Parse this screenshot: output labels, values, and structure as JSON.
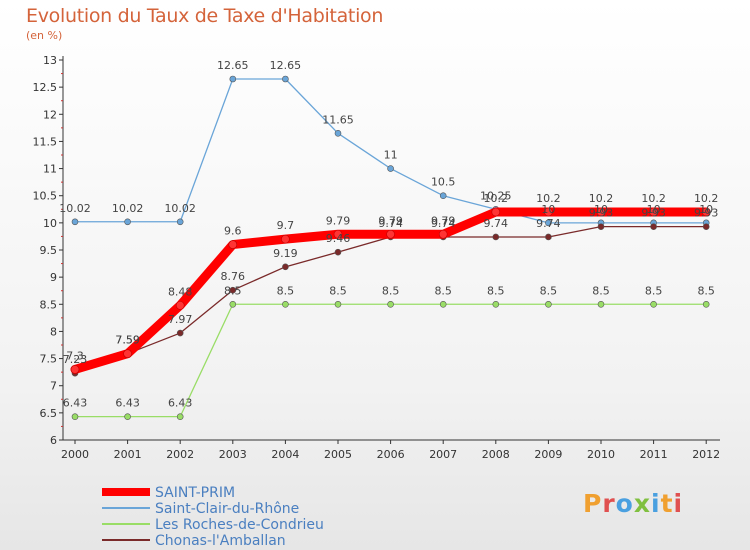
{
  "chart_data": {
    "type": "line",
    "title": "Evolution du Taux de Taxe d'Habitation",
    "subtitle": "(en %)",
    "x": [
      "2000",
      "2001",
      "2002",
      "2003",
      "2004",
      "2005",
      "2006",
      "2007",
      "2008",
      "2009",
      "2010",
      "2011",
      "2012"
    ],
    "ylim": [
      6,
      13
    ],
    "yticks": [
      "6",
      "6.5",
      "7",
      "7.5",
      "8",
      "8.5",
      "9",
      "9.5",
      "10",
      "10.5",
      "11",
      "11.5",
      "12",
      "12.5",
      "13"
    ],
    "grid": false,
    "legend_position": "bottom-left",
    "series": [
      {
        "name": "SAINT-PRIM",
        "color": "#ff0000",
        "values": [
          7.3,
          7.59,
          8.48,
          9.6,
          9.7,
          9.79,
          9.79,
          9.79,
          10.2,
          10.2,
          10.2,
          10.2,
          10.2
        ],
        "labels": [
          "7.3",
          "7.59",
          "8.48",
          "9.6",
          "9.7",
          "9.79",
          "9.79",
          "9.79",
          "10.2",
          "10.2",
          "10.2",
          "10.2",
          "10.2"
        ]
      },
      {
        "name": "Saint-Clair-du-Rhône",
        "color": "#6aa5d8",
        "values": [
          10.02,
          10.02,
          10.02,
          12.65,
          12.65,
          11.65,
          11,
          10.5,
          10.25,
          10,
          10,
          10,
          10
        ],
        "labels": [
          "10.02",
          "10.02",
          "10.02",
          "12.65",
          "12.65",
          "11.65",
          "11",
          "10.5",
          "10.25",
          "10",
          "10",
          "10",
          "10"
        ]
      },
      {
        "name": "Les Roches-de-Condrieu",
        "color": "#99dd66",
        "values": [
          6.43,
          6.43,
          6.43,
          8.5,
          8.5,
          8.5,
          8.5,
          8.5,
          8.5,
          8.5,
          8.5,
          8.5,
          8.5
        ],
        "labels": [
          "6.43",
          "6.43",
          "6.43",
          "8.5",
          "8.5",
          "8.5",
          "8.5",
          "8.5",
          "8.5",
          "8.5",
          "8.5",
          "8.5",
          "8.5"
        ]
      },
      {
        "name": "Chonas-l'Amballan",
        "color": "#7a2a2a",
        "values": [
          7.23,
          7.59,
          7.97,
          8.76,
          9.19,
          9.46,
          9.74,
          9.74,
          9.74,
          9.74,
          9.93,
          9.93,
          9.93
        ],
        "labels": [
          "7.23",
          "7.59",
          "7.97",
          "8.76",
          "9.19",
          "9.46",
          "9.74",
          "9.74",
          "9.74",
          "9.74",
          "9.93",
          "9.93",
          "9.93"
        ]
      }
    ]
  },
  "logo": {
    "letters": [
      "P",
      "r",
      "o",
      "x",
      "i",
      "t",
      "i"
    ],
    "colors": [
      "#f0a030",
      "#e05050",
      "#4aa0e0",
      "#80c040",
      "#4aa0e0",
      "#f0a030",
      "#e05050"
    ]
  }
}
